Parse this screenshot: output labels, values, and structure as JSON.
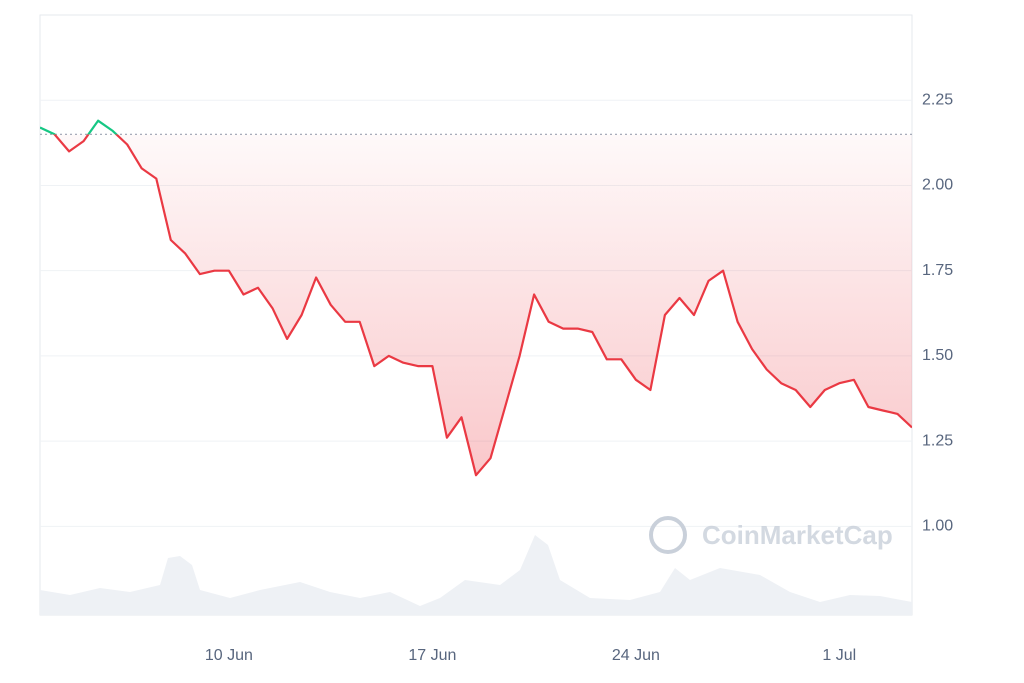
{
  "chart_data": {
    "type": "line",
    "watermark": "CoinMarketCap",
    "categories": [
      null,
      null,
      null,
      null,
      null,
      null,
      null,
      null,
      null,
      null,
      null,
      null,
      null,
      "10 Jun",
      null,
      null,
      null,
      null,
      null,
      null,
      null,
      null,
      null,
      null,
      null,
      null,
      null,
      "17 Jun",
      null,
      null,
      null,
      null,
      null,
      null,
      null,
      null,
      null,
      null,
      null,
      null,
      null,
      "24 Jun",
      null,
      null,
      null,
      null,
      null,
      null,
      null,
      null,
      null,
      null,
      null,
      null,
      null,
      "1 Jul",
      null,
      null,
      null,
      null,
      null
    ],
    "series": [
      {
        "name": null,
        "color": "#ea3943",
        "up_color": "#16c784",
        "values": [
          2.17,
          2.15,
          2.1,
          2.13,
          2.19,
          2.16,
          2.12,
          2.05,
          2.02,
          1.84,
          1.8,
          1.74,
          1.75,
          1.75,
          1.68,
          1.7,
          1.64,
          1.55,
          1.62,
          1.73,
          1.65,
          1.6,
          1.6,
          1.47,
          1.5,
          1.48,
          1.47,
          1.47,
          1.26,
          1.32,
          1.15,
          1.2,
          1.35,
          1.5,
          1.68,
          1.6,
          1.58,
          1.58,
          1.57,
          1.49,
          1.49,
          1.43,
          1.4,
          1.62,
          1.67,
          1.62,
          1.72,
          1.75,
          1.6,
          1.52,
          1.46,
          1.42,
          1.4,
          1.35,
          1.4,
          1.42,
          1.43,
          1.35,
          1.34,
          1.33,
          1.29
        ]
      }
    ],
    "reference": 2.15,
    "ylim": [
      0.74,
      2.5
    ],
    "yticks": [
      {
        "value": 1,
        "label": "1.00"
      },
      1.25,
      {
        "value": 1.5,
        "label": "1.50"
      },
      1.75,
      {
        "value": 2,
        "label": "2.00"
      },
      2.25
    ],
    "grid": true
  }
}
